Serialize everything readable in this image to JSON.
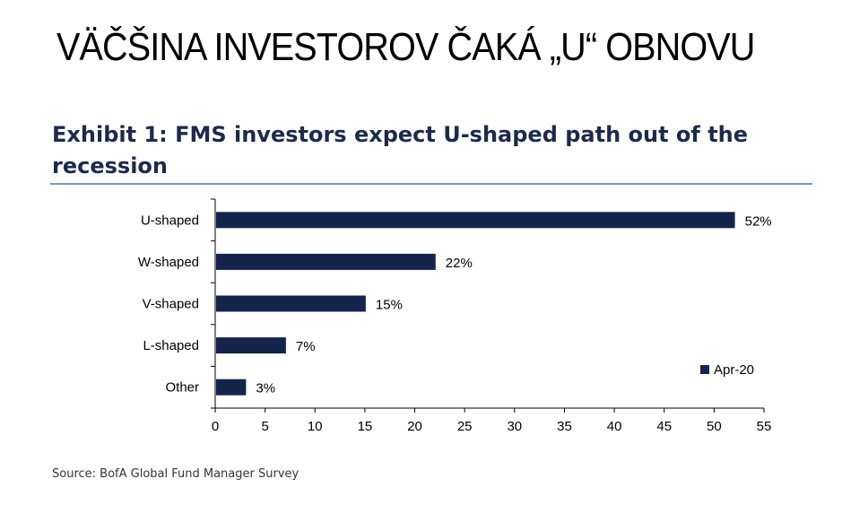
{
  "slide": {
    "title": "VÄČŠINA INVESTOROV ČAKÁ „U“ OBNOVU"
  },
  "exhibit": {
    "title": "Exhibit 1: FMS investors expect U-shaped path out of the recession"
  },
  "source": "Source: BofA Global Fund Manager Survey",
  "colors": {
    "bar": "#14244a",
    "text": "#000000",
    "title_text": "#1c2b4a",
    "divider": "#7f96b8"
  },
  "chart_data": {
    "type": "bar",
    "orientation": "horizontal",
    "categories": [
      "U-shaped",
      "W-shaped",
      "V-shaped",
      "L-shaped",
      "Other"
    ],
    "series": [
      {
        "name": "Apr-20",
        "values": [
          52,
          22,
          15,
          7,
          3
        ]
      }
    ],
    "data_labels": [
      "52%",
      "22%",
      "15%",
      "7%",
      "3%"
    ],
    "xlim": [
      0,
      55
    ],
    "xticks": [
      0,
      5,
      10,
      15,
      20,
      25,
      30,
      35,
      40,
      45,
      50,
      55
    ],
    "grid": false,
    "legend": "bottom-right"
  }
}
